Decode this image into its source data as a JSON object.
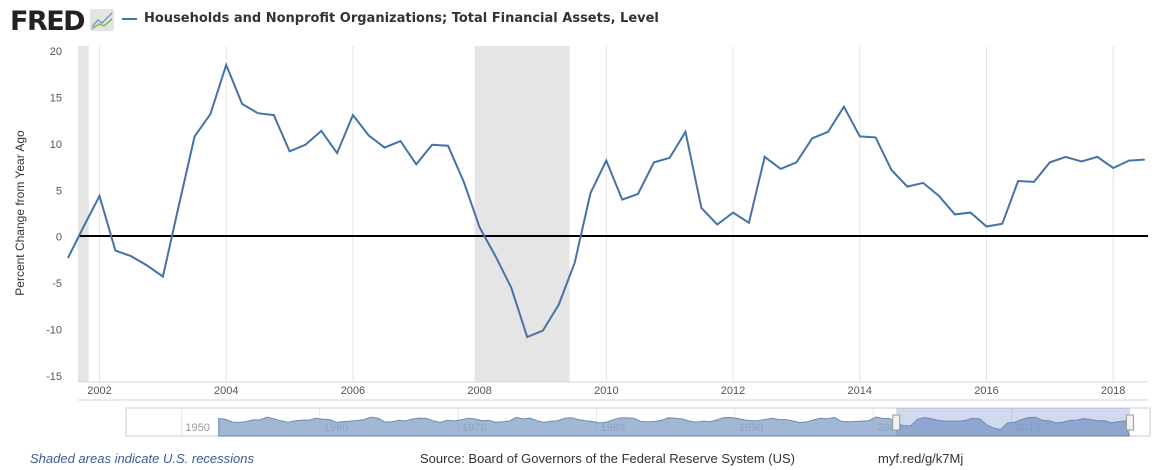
{
  "header": {
    "logo": "FRED",
    "series_title": "Households and Nonprofit Organizations; Total Financial Assets, Level"
  },
  "colors": {
    "series": "#4572a7",
    "recession": "#e5e5e5",
    "navigator_fill": "#8aa6c9"
  },
  "chart_data": {
    "type": "line",
    "title": "Households and Nonprofit Organizations; Total Financial Assets, Level",
    "ylabel": "Percent Change from Year Ago",
    "xlabel": "",
    "ylim": [
      -15,
      20
    ],
    "yticks": [
      "20",
      "15",
      "10",
      "5",
      "0",
      "-5",
      "-10",
      "-15"
    ],
    "ytick_values": [
      20,
      15,
      10,
      5,
      0,
      -5,
      -10,
      -15
    ],
    "xticks": [
      "2002",
      "2004",
      "2006",
      "2008",
      "2010",
      "2012",
      "2014",
      "2016",
      "2018"
    ],
    "xlim": [
      2001.66,
      2018.55
    ],
    "start": 2001.5,
    "step": 0.25,
    "values": [
      -2.3,
      1.1,
      4.4,
      -1.5,
      -2.1,
      -3.1,
      -4.3,
      3.3,
      10.8,
      13.2,
      18.5,
      14.3,
      13.3,
      13.1,
      9.2,
      9.9,
      11.4,
      9.0,
      13.1,
      10.9,
      9.6,
      10.3,
      7.8,
      9.9,
      9.8,
      5.9,
      1.0,
      -2.1,
      -5.5,
      -10.8,
      -10.1,
      -7.3,
      -2.8,
      4.7,
      8.2,
      4.0,
      4.6,
      8.0,
      8.5,
      11.3,
      3.1,
      1.3,
      2.6,
      1.5,
      8.6,
      7.3,
      8.0,
      10.6,
      11.3,
      14.0,
      10.8,
      10.7,
      7.2,
      5.4,
      5.8,
      4.4,
      2.4,
      2.6,
      1.1,
      1.4,
      6.0,
      5.9,
      8.0,
      8.6,
      8.1,
      8.6,
      7.4,
      8.2,
      8.3
    ],
    "recessions": [
      [
        2001.17,
        2001.83
      ],
      [
        2007.92,
        2009.42
      ]
    ],
    "grid": "vertical",
    "legend": "top-left",
    "navigator": {
      "labels": [
        "1950",
        "1960",
        "1970",
        "1980",
        "1990",
        "2000",
        "2010"
      ],
      "range": [
        1946,
        2020
      ],
      "selected": [
        2001.66,
        2018.55
      ]
    }
  },
  "footer": {
    "recession_note": "Shaded areas indicate U.S. recessions",
    "source": "Source: Board of Governors of the Federal Reserve System (US)",
    "url": "myf.red/g/k7Mj"
  }
}
